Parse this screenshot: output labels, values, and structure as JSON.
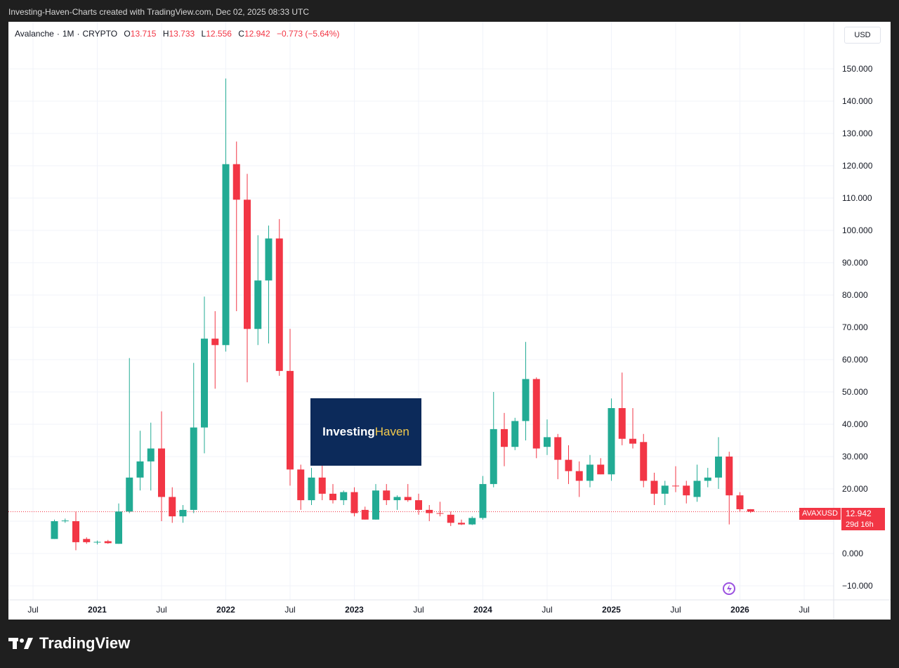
{
  "header": {
    "caption": "Investing-Haven-Charts created with TradingView.com, Dec 02, 2025 08:33 UTC"
  },
  "legend": {
    "symbol": "Avalanche",
    "interval": "1M",
    "exchange": "CRYPTO",
    "open_label": "O",
    "open": "13.715",
    "high_label": "H",
    "high": "13.733",
    "low_label": "L",
    "low": "12.556",
    "close_label": "C",
    "close": "12.942",
    "change": "−0.773 (−5.64%)"
  },
  "currency": "USD",
  "price_tag": {
    "ticker": "AVAXUSD",
    "value": "12.942",
    "countdown": "29d 16h"
  },
  "watermark": {
    "part1": "Investing",
    "part2": "Haven"
  },
  "footer": {
    "brand": "TradingView"
  },
  "colors": {
    "up": "#22ab94",
    "down": "#f23645",
    "grid": "#f0f3fa",
    "axis_text": "#131722"
  },
  "chart_data": {
    "type": "candlestick",
    "title": "Avalanche · 1M · CRYPTO",
    "interval": "monthly",
    "ylim": [
      -12,
      160
    ],
    "y_ticks": [
      "150.000",
      "140.000",
      "130.000",
      "120.000",
      "110.000",
      "100.000",
      "90.000",
      "80.000",
      "70.000",
      "60.000",
      "50.000",
      "40.000",
      "30.000",
      "20.000",
      "10.000",
      "0.000",
      "−10.000"
    ],
    "y_tick_values": [
      150,
      140,
      130,
      120,
      110,
      100,
      90,
      80,
      70,
      60,
      50,
      40,
      30,
      20,
      10,
      0,
      -10
    ],
    "x_ticks": [
      {
        "label": "Jul",
        "index": 0,
        "bold": false
      },
      {
        "label": "2021",
        "index": 6,
        "bold": true
      },
      {
        "label": "Jul",
        "index": 12,
        "bold": false
      },
      {
        "label": "2022",
        "index": 18,
        "bold": true
      },
      {
        "label": "Jul",
        "index": 24,
        "bold": false
      },
      {
        "label": "2023",
        "index": 30,
        "bold": true
      },
      {
        "label": "Jul",
        "index": 36,
        "bold": false
      },
      {
        "label": "2024",
        "index": 42,
        "bold": true
      },
      {
        "label": "Jul",
        "index": 48,
        "bold": false
      },
      {
        "label": "2025",
        "index": 54,
        "bold": true
      },
      {
        "label": "Jul",
        "index": 60,
        "bold": false
      },
      {
        "label": "2026",
        "index": 66,
        "bold": true
      },
      {
        "label": "Jul",
        "index": 72,
        "bold": false
      }
    ],
    "last_price": 12.942,
    "candles": [
      {
        "d": "2020-09",
        "o": 4.5,
        "h": 10.5,
        "l": 4.5,
        "c": 10.0
      },
      {
        "d": "2020-10",
        "o": 10.0,
        "h": 10.8,
        "l": 9.5,
        "c": 10.2
      },
      {
        "d": "2020-11",
        "o": 10.0,
        "h": 13.0,
        "l": 1.0,
        "c": 3.5
      },
      {
        "d": "2020-12",
        "o": 4.5,
        "h": 5.0,
        "l": 3.0,
        "c": 3.5
      },
      {
        "d": "2021-01",
        "o": 3.4,
        "h": 4.0,
        "l": 2.8,
        "c": 3.6
      },
      {
        "d": "2021-02",
        "o": 3.8,
        "h": 4.2,
        "l": 3.0,
        "c": 3.2
      },
      {
        "d": "2021-03",
        "o": 3.0,
        "h": 15.5,
        "l": 3.0,
        "c": 13.0
      },
      {
        "d": "2021-04",
        "o": 13.0,
        "h": 60.5,
        "l": 12.5,
        "c": 23.5
      },
      {
        "d": "2021-05",
        "o": 23.5,
        "h": 38.0,
        "l": 19.5,
        "c": 28.5
      },
      {
        "d": "2021-06",
        "o": 28.5,
        "h": 40.5,
        "l": 19.5,
        "c": 32.5
      },
      {
        "d": "2021-07",
        "o": 32.5,
        "h": 44.0,
        "l": 10.0,
        "c": 17.5
      },
      {
        "d": "2021-08",
        "o": 17.5,
        "h": 20.5,
        "l": 9.5,
        "c": 11.5
      },
      {
        "d": "2021-09",
        "o": 11.5,
        "h": 15.0,
        "l": 9.5,
        "c": 13.5
      },
      {
        "d": "2021-10",
        "o": 13.5,
        "h": 59.0,
        "l": 12.5,
        "c": 39.0
      },
      {
        "d": "2021-11",
        "o": 39.0,
        "h": 79.5,
        "l": 31.0,
        "c": 66.5
      },
      {
        "d": "2021-12",
        "o": 66.5,
        "h": 75.0,
        "l": 51.0,
        "c": 64.5
      },
      {
        "d": "2022-01",
        "o": 64.5,
        "h": 147.0,
        "l": 62.5,
        "c": 120.5
      },
      {
        "d": "2022-02",
        "o": 120.5,
        "h": 127.5,
        "l": 75.0,
        "c": 109.5
      },
      {
        "d": "2022-03",
        "o": 109.5,
        "h": 117.5,
        "l": 53.0,
        "c": 69.5
      },
      {
        "d": "2022-04",
        "o": 69.5,
        "h": 98.5,
        "l": 64.5,
        "c": 84.5
      },
      {
        "d": "2022-05",
        "o": 84.5,
        "h": 101.5,
        "l": 65.0,
        "c": 97.5
      },
      {
        "d": "2022-06",
        "o": 97.5,
        "h": 103.5,
        "l": 55.0,
        "c": 56.5
      },
      {
        "d": "2022-07",
        "o": 56.5,
        "h": 69.5,
        "l": 21.0,
        "c": 26.0
      },
      {
        "d": "2022-08",
        "o": 26.0,
        "h": 27.5,
        "l": 13.5,
        "c": 16.5
      },
      {
        "d": "2022-09",
        "o": 16.5,
        "h": 26.5,
        "l": 15.0,
        "c": 23.5
      },
      {
        "d": "2022-10",
        "o": 23.5,
        "h": 30.5,
        "l": 16.5,
        "c": 18.5
      },
      {
        "d": "2022-11",
        "o": 18.5,
        "h": 21.5,
        "l": 15.5,
        "c": 16.5
      },
      {
        "d": "2022-12",
        "o": 16.5,
        "h": 19.5,
        "l": 15.0,
        "c": 19.0
      },
      {
        "d": "2023-01",
        "o": 19.0,
        "h": 20.5,
        "l": 11.5,
        "c": 12.5
      },
      {
        "d": "2023-02",
        "o": 13.5,
        "h": 14.5,
        "l": 10.5,
        "c": 10.5
      },
      {
        "d": "2023-03",
        "o": 10.5,
        "h": 21.5,
        "l": 10.5,
        "c": 19.5
      },
      {
        "d": "2023-04",
        "o": 19.5,
        "h": 21.5,
        "l": 15.0,
        "c": 16.5
      },
      {
        "d": "2023-05",
        "o": 16.5,
        "h": 18.0,
        "l": 13.5,
        "c": 17.5
      },
      {
        "d": "2023-06",
        "o": 17.5,
        "h": 21.5,
        "l": 16.0,
        "c": 16.5
      },
      {
        "d": "2023-07",
        "o": 16.5,
        "h": 18.5,
        "l": 12.0,
        "c": 13.5
      },
      {
        "d": "2023-08",
        "o": 13.5,
        "h": 15.0,
        "l": 10.0,
        "c": 12.5
      },
      {
        "d": "2023-09",
        "o": 12.5,
        "h": 16.0,
        "l": 11.5,
        "c": 12.3
      },
      {
        "d": "2023-10",
        "o": 12.0,
        "h": 13.0,
        "l": 8.5,
        "c": 9.5
      },
      {
        "d": "2023-11",
        "o": 9.5,
        "h": 10.5,
        "l": 8.8,
        "c": 9.0
      },
      {
        "d": "2023-12",
        "o": 9.0,
        "h": 11.5,
        "l": 8.8,
        "c": 11.0
      },
      {
        "d": "2024-01",
        "o": 11.0,
        "h": 24.0,
        "l": 10.5,
        "c": 21.5
      },
      {
        "d": "2024-02",
        "o": 21.5,
        "h": 50.0,
        "l": 20.5,
        "c": 38.5
      },
      {
        "d": "2024-03",
        "o": 38.5,
        "h": 43.5,
        "l": 27.0,
        "c": 33.0
      },
      {
        "d": "2024-04",
        "o": 33.0,
        "h": 42.0,
        "l": 32.0,
        "c": 41.0
      },
      {
        "d": "2024-05",
        "o": 41.0,
        "h": 65.5,
        "l": 35.0,
        "c": 54.0
      },
      {
        "d": "2024-06",
        "o": 54.0,
        "h": 54.5,
        "l": 29.5,
        "c": 32.5
      },
      {
        "d": "2024-07",
        "o": 33.0,
        "h": 41.5,
        "l": 30.5,
        "c": 36.0
      },
      {
        "d": "2024-08",
        "o": 36.0,
        "h": 37.0,
        "l": 23.0,
        "c": 29.0
      },
      {
        "d": "2024-09",
        "o": 29.0,
        "h": 33.5,
        "l": 21.5,
        "c": 25.5
      },
      {
        "d": "2024-10",
        "o": 25.5,
        "h": 28.5,
        "l": 17.5,
        "c": 22.5
      },
      {
        "d": "2024-11",
        "o": 22.5,
        "h": 30.5,
        "l": 20.5,
        "c": 27.5
      },
      {
        "d": "2024-12",
        "o": 27.5,
        "h": 29.5,
        "l": 24.5,
        "c": 24.5
      },
      {
        "d": "2025-01",
        "o": 24.5,
        "h": 48.0,
        "l": 22.5,
        "c": 45.0
      },
      {
        "d": "2025-02",
        "o": 45.0,
        "h": 56.0,
        "l": 33.5,
        "c": 35.5
      },
      {
        "d": "2025-03",
        "o": 35.5,
        "h": 45.0,
        "l": 32.5,
        "c": 34.0
      },
      {
        "d": "2025-04",
        "o": 34.5,
        "h": 37.0,
        "l": 20.5,
        "c": 22.5
      },
      {
        "d": "2025-05",
        "o": 22.5,
        "h": 25.0,
        "l": 15.0,
        "c": 18.5
      },
      {
        "d": "2025-06",
        "o": 18.5,
        "h": 22.5,
        "l": 15.0,
        "c": 21.0
      },
      {
        "d": "2025-07",
        "o": 21.0,
        "h": 27.0,
        "l": 19.0,
        "c": 20.8
      },
      {
        "d": "2025-08",
        "o": 21.0,
        "h": 22.5,
        "l": 15.5,
        "c": 18.0
      },
      {
        "d": "2025-09",
        "o": 17.5,
        "h": 27.5,
        "l": 16.0,
        "c": 22.5
      },
      {
        "d": "2025-10",
        "o": 22.5,
        "h": 26.5,
        "l": 20.5,
        "c": 23.5
      },
      {
        "d": "2025-11",
        "o": 23.5,
        "h": 36.0,
        "l": 20.0,
        "c": 30.0
      },
      {
        "d": "2025-12",
        "o": 30.0,
        "h": 31.5,
        "l": 9.0,
        "c": 18.0
      },
      {
        "d": "2026-01",
        "o": 18.0,
        "h": 19.0,
        "l": 12.8,
        "c": 13.7
      },
      {
        "d": "2026-02",
        "o": 13.715,
        "h": 13.733,
        "l": 12.556,
        "c": 12.942
      }
    ]
  }
}
